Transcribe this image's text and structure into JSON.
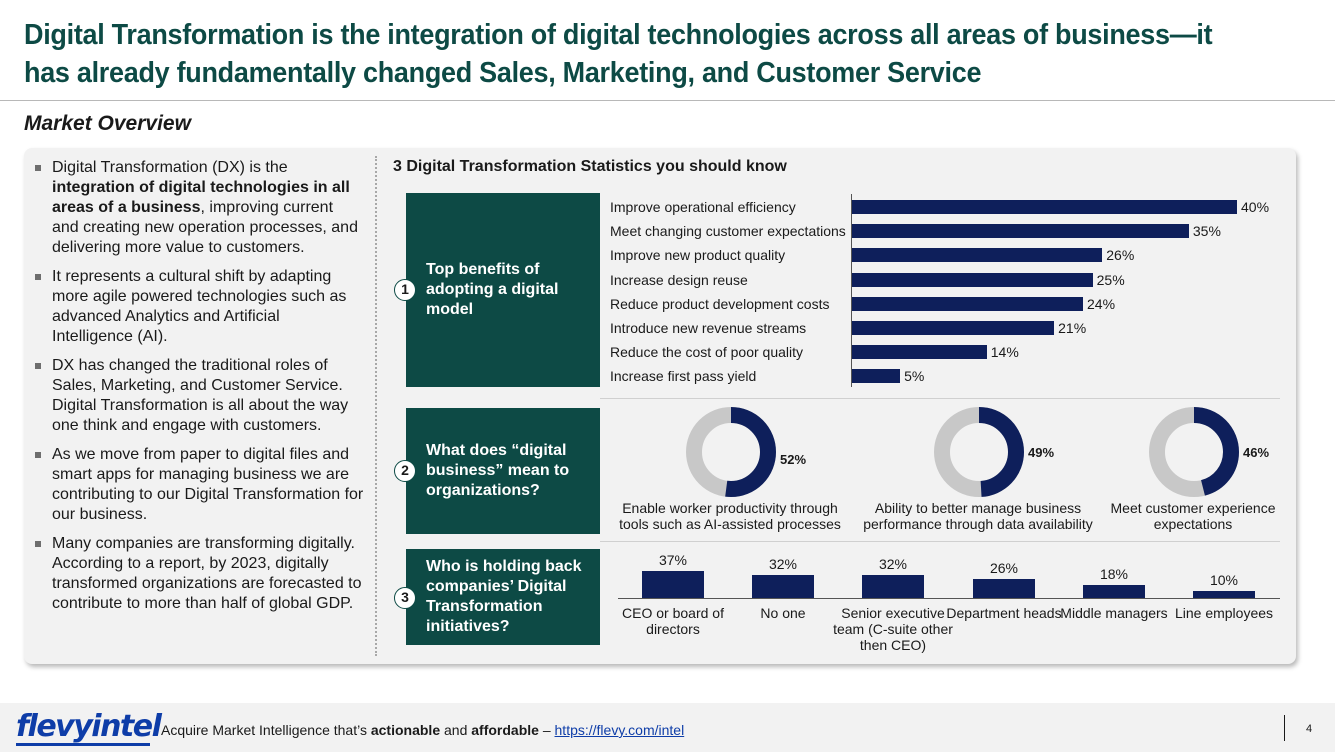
{
  "header": {
    "title": "Digital Transformation is the integration of digital technologies across all areas of business—it has already fundamentally changed Sales, Marketing, and Customer Service",
    "subtitle": "Market Overview"
  },
  "bullets": [
    {
      "pre": "Digital Transformation (DX) is the ",
      "bold": "integration of digital technologies in all areas of a business",
      "post": ", improving current and creating new operation processes, and delivering more value to customers."
    },
    {
      "pre": "It represents a cultural shift by adapting more agile powered technologies such as advanced Analytics and Artificial Intelligence (AI).",
      "bold": "",
      "post": ""
    },
    {
      "pre": "DX has changed the traditional roles of Sales, Marketing, and Customer Service. Digital Transformation is all about the way one think and engage with customers.",
      "bold": "",
      "post": ""
    },
    {
      "pre": "As we move from paper to digital files and smart apps for managing business we are contributing to our Digital Transformation for our business.",
      "bold": "",
      "post": ""
    },
    {
      "pre": "Many companies are transforming digitally. According to a report, by 2023, digitally transformed organizations are forecasted to contribute to more than half of global GDP.",
      "bold": "",
      "post": ""
    }
  ],
  "stats_heading": "3 Digital Transformation Statistics you should know",
  "sections": [
    {
      "number": "1",
      "question": "Top benefits of adopting a digital model"
    },
    {
      "number": "2",
      "question": "What does “digital business” mean to organizations?"
    },
    {
      "number": "3",
      "question": "Who is holding back companies’ Digital Transformation initiatives?"
    }
  ],
  "chart_data": [
    {
      "type": "bar",
      "orientation": "horizontal",
      "categories": [
        "Improve operational efficiency",
        "Meet changing customer expectations",
        "Improve new product quality",
        "Increase design reuse",
        "Reduce product development costs",
        "Introduce new revenue streams",
        "Reduce the cost of poor quality",
        "Increase first pass yield"
      ],
      "values": [
        40,
        35,
        26,
        25,
        24,
        21,
        14,
        5
      ],
      "value_labels": [
        "40%",
        "35%",
        "26%",
        "25%",
        "24%",
        "21%",
        "14%",
        "5%"
      ],
      "xlim": [
        0,
        40
      ],
      "color": "#0e1f5b"
    },
    {
      "type": "pie",
      "style": "donut",
      "items": [
        {
          "label": "Enable worker productivity through tools such as AI-assisted processes",
          "value": 52,
          "value_label": "52%"
        },
        {
          "label": "Ability to better manage business performance through data availability",
          "value": 49,
          "value_label": "49%"
        },
        {
          "label": "Meet customer experience expectations",
          "value": 46,
          "value_label": "46%"
        }
      ],
      "colors": {
        "filled": "#0e1f5b",
        "remainder": "#c8c8c8"
      }
    },
    {
      "type": "bar",
      "orientation": "vertical",
      "categories": [
        "CEO or board of directors",
        "No one",
        "Senior executive team (C-suite other then CEO)",
        "Department heads",
        "Middle managers",
        "Line employees"
      ],
      "values": [
        37,
        32,
        32,
        26,
        18,
        10
      ],
      "value_labels": [
        "37%",
        "32%",
        "32%",
        "26%",
        "18%",
        "10%"
      ],
      "ylim": [
        0,
        37
      ],
      "color": "#0e1f5b"
    }
  ],
  "footer": {
    "logo": "flevyintel",
    "text_pre": "Acquire Market Intelligence that’s ",
    "text_b1": "actionable",
    "text_mid": " and ",
    "text_b2": "affordable",
    "text_dash": " – ",
    "link": "https://flevy.com/intel",
    "page_number": "4"
  },
  "colors": {
    "brand_green": "#0d4a45",
    "bar_navy": "#0e1f5b",
    "logo_blue": "#0e3da8"
  }
}
